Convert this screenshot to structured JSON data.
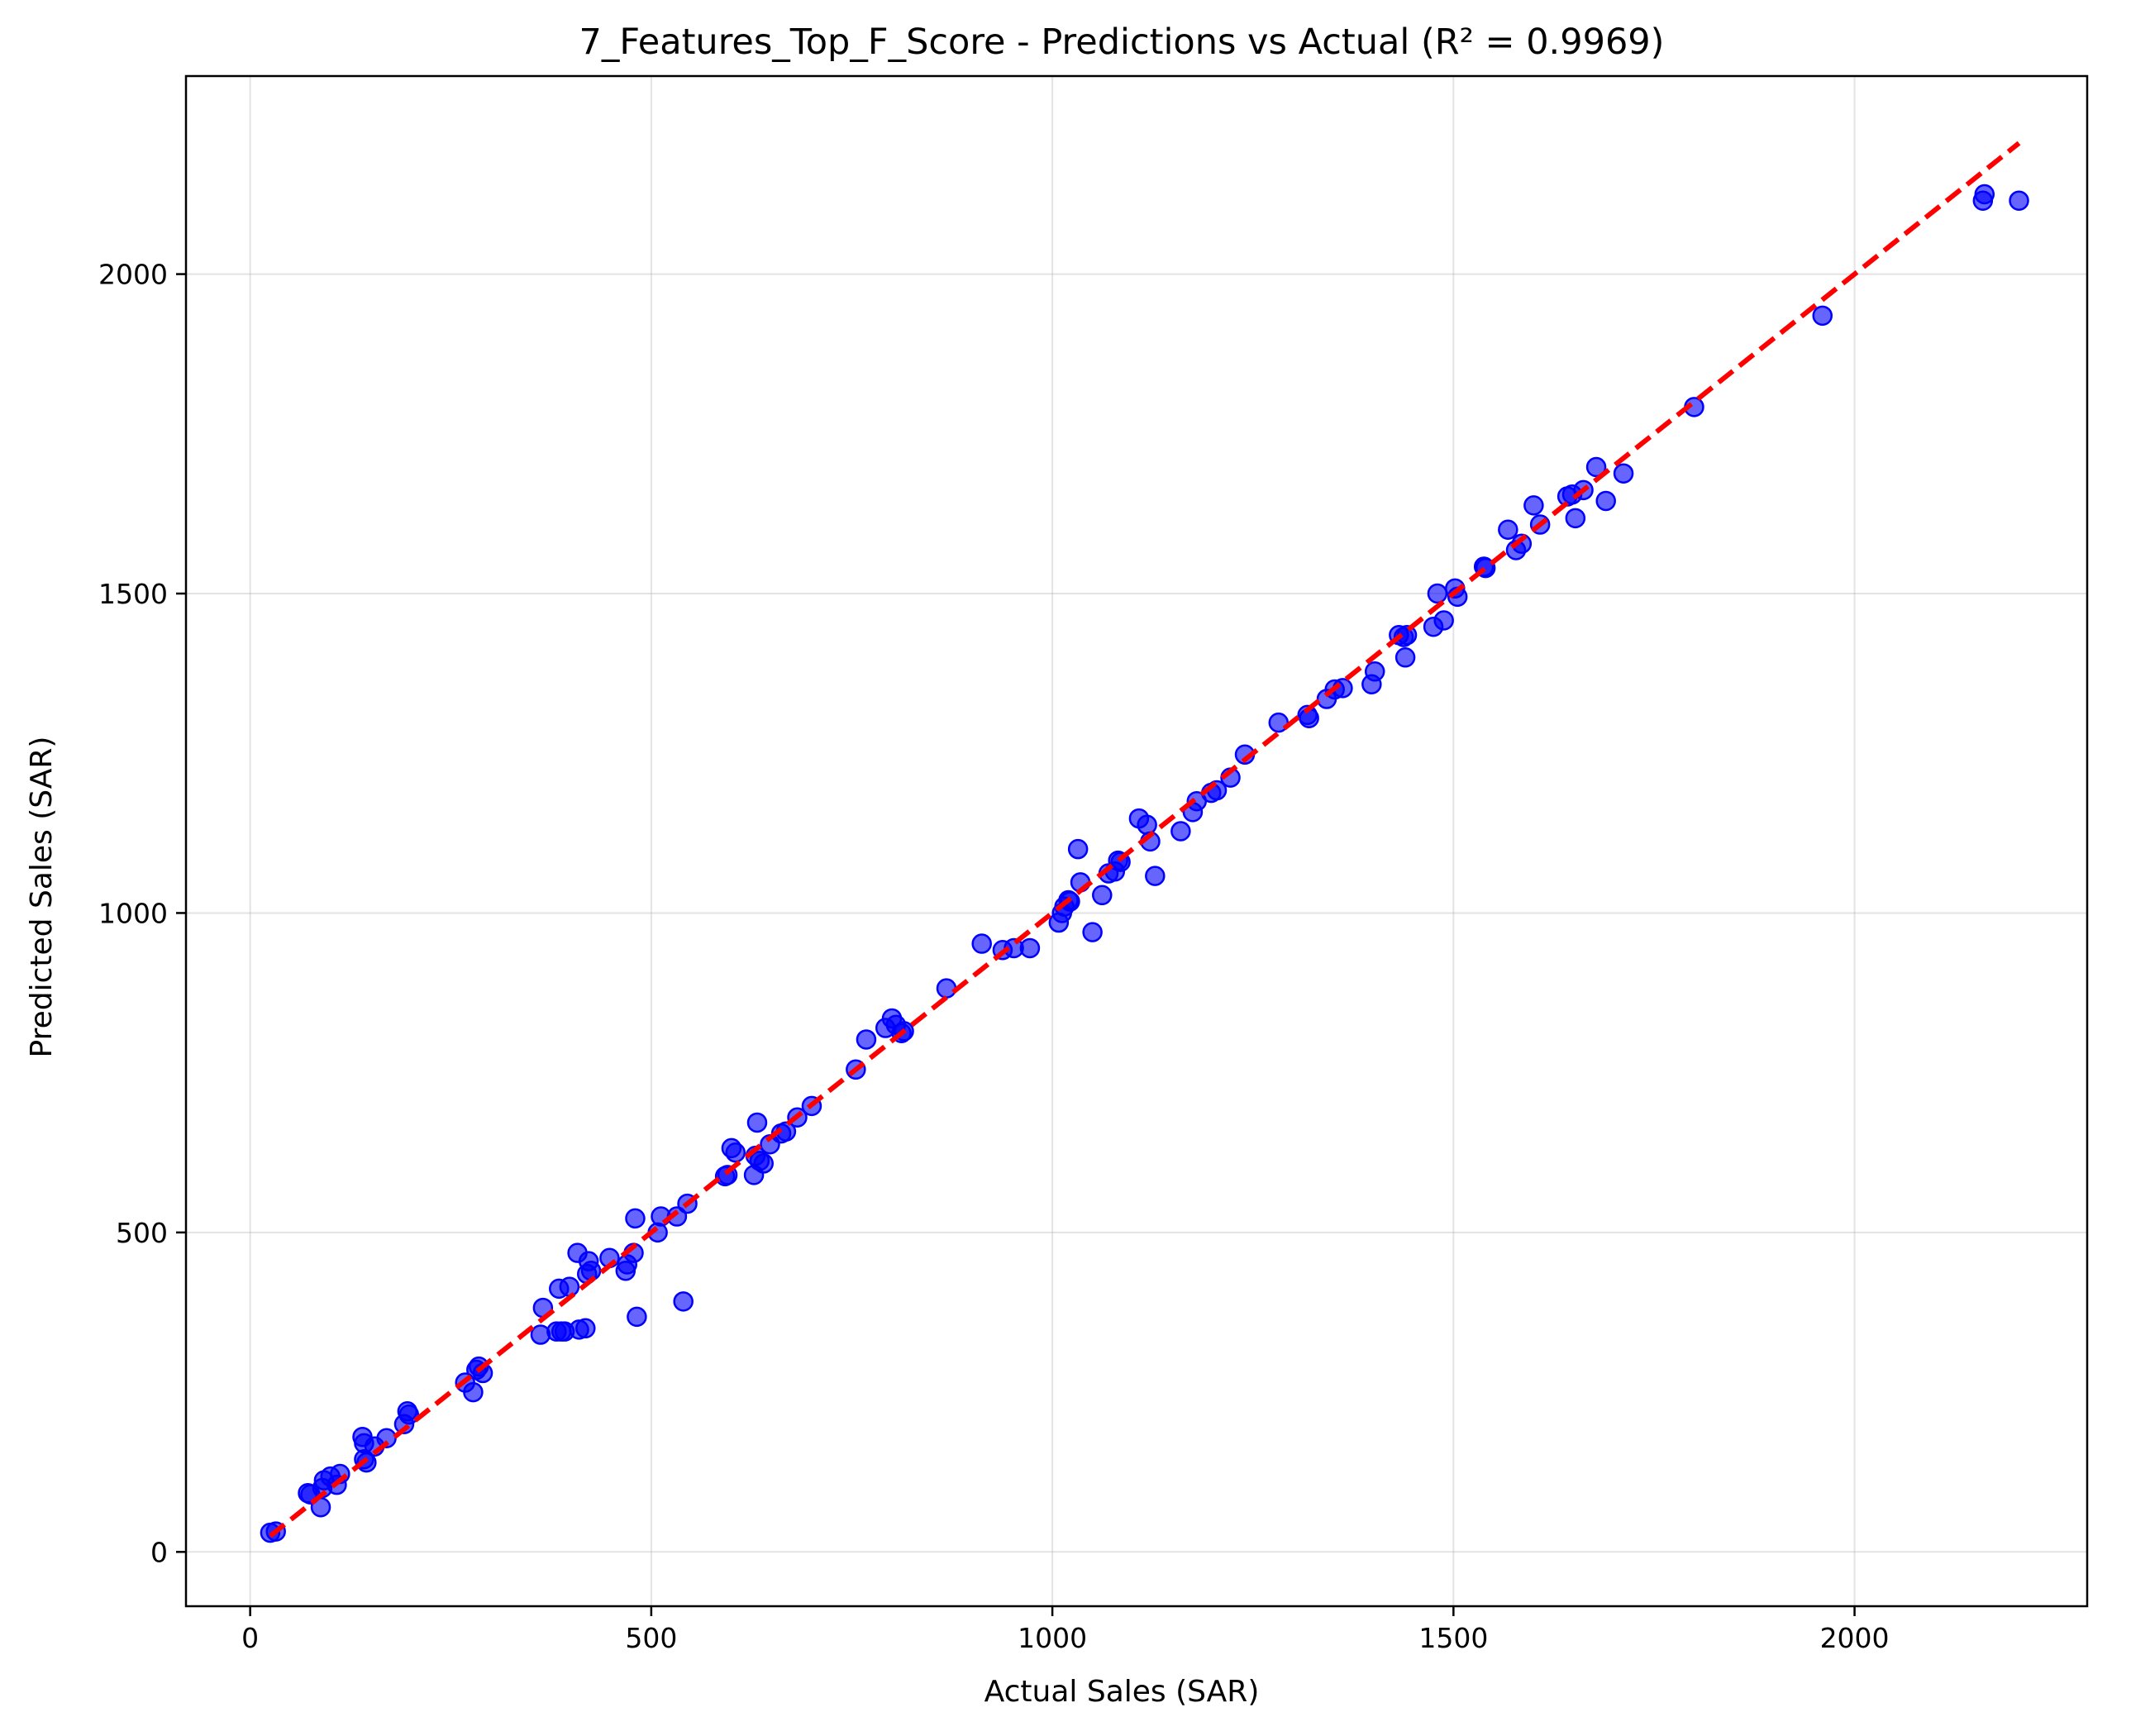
{
  "chart_data": {
    "type": "scatter",
    "title": "7_Features_Top_F_Score - Predictions vs Actual (R² = 0.9969)",
    "xlabel": "Actual Sales (SAR)",
    "ylabel": "Predicted Sales (SAR)",
    "xlim": [
      -80,
      2290
    ],
    "ylim": [
      -85,
      2310
    ],
    "xticks": [
      0,
      500,
      1000,
      1500,
      2000
    ],
    "yticks": [
      0,
      500,
      1000,
      1500,
      2000
    ],
    "grid": true,
    "colors": {
      "points": "#0000ff",
      "reference_line": "#ff0000"
    },
    "reference_line": {
      "x": [
        25,
        2205
      ],
      "y": [
        25,
        2205
      ]
    },
    "points": {
      "x": [
        25,
        32,
        72,
        75,
        88,
        90,
        92,
        100,
        108,
        112,
        140,
        142,
        142,
        145,
        155,
        170,
        192,
        196,
        198,
        268,
        278,
        282,
        285,
        290,
        362,
        365,
        382,
        385,
        388,
        392,
        398,
        408,
        410,
        418,
        420,
        422,
        425,
        448,
        468,
        470,
        478,
        480,
        482,
        508,
        512,
        532,
        540,
        545,
        592,
        595,
        600,
        605,
        628,
        630,
        632,
        635,
        640,
        648,
        662,
        668,
        682,
        700,
        755,
        768,
        792,
        800,
        805,
        812,
        815,
        868,
        912,
        938,
        952,
        972,
        1008,
        1012,
        1015,
        1020,
        1022,
        1032,
        1035,
        1050,
        1062,
        1070,
        1078,
        1082,
        1085,
        1108,
        1118,
        1122,
        1128,
        1160,
        1175,
        1180,
        1198,
        1205,
        1222,
        1240,
        1282,
        1318,
        1320,
        1342,
        1352,
        1362,
        1398,
        1402,
        1432,
        1438,
        1440,
        1442,
        1475,
        1480,
        1488,
        1502,
        1505,
        1538,
        1540,
        1568,
        1578,
        1585,
        1600,
        1608,
        1642,
        1648,
        1652,
        1662,
        1678,
        1690,
        1712,
        1800,
        1960,
        2160,
        2162,
        2205
      ],
      "y": [
        30,
        32,
        92,
        90,
        70,
        100,
        112,
        118,
        105,
        122,
        180,
        170,
        145,
        140,
        165,
        178,
        200,
        220,
        215,
        265,
        250,
        285,
        290,
        280,
        340,
        382,
        345,
        412,
        345,
        345,
        415,
        468,
        348,
        350,
        435,
        455,
        440,
        460,
        440,
        450,
        468,
        522,
        368,
        500,
        525,
        525,
        392,
        545,
        588,
        590,
        632,
        625,
        590,
        620,
        672,
        612,
        608,
        638,
        655,
        658,
        680,
        698,
        755,
        802,
        820,
        835,
        825,
        812,
        815,
        882,
        952,
        942,
        945,
        945,
        985,
        1000,
        1010,
        1020,
        1018,
        1100,
        1048,
        970,
        1028,
        1062,
        1065,
        1082,
        1080,
        1148,
        1138,
        1112,
        1058,
        1128,
        1158,
        1175,
        1188,
        1192,
        1212,
        1248,
        1298,
        1310,
        1305,
        1335,
        1350,
        1352,
        1358,
        1378,
        1435,
        1432,
        1400,
        1435,
        1448,
        1500,
        1458,
        1508,
        1495,
        1542,
        1540,
        1600,
        1568,
        1578,
        1638,
        1608,
        1652,
        1655,
        1618,
        1662,
        1698,
        1645,
        1688,
        1792,
        1935,
        2115,
        2125,
        2115
      ]
    }
  }
}
